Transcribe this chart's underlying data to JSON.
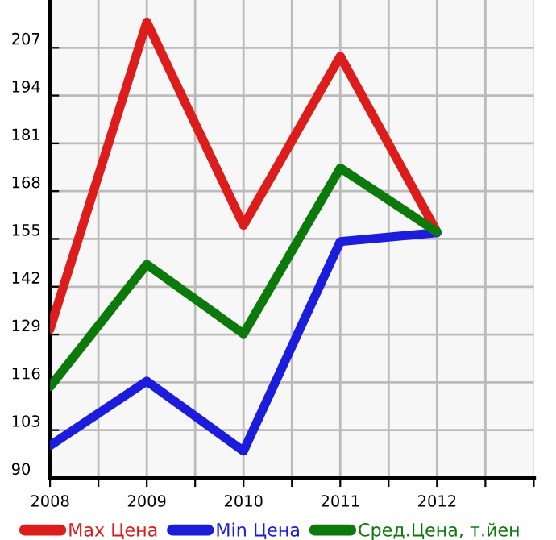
{
  "chart_data": {
    "type": "line",
    "x": [
      2008,
      2009,
      2010,
      2011,
      2012
    ],
    "series": [
      {
        "name": "Max Цена",
        "color": "#dd1c1c",
        "values": [
          130.5,
          214,
          158.7,
          204.7,
          156.9
        ]
      },
      {
        "name": "Min Цена",
        "color": "#1c1cdd",
        "values": [
          98.8,
          116.3,
          97.3,
          154.3,
          156.7
        ]
      },
      {
        "name": "Сред.Цена, т.йен",
        "color": "#0b7a0b",
        "values": [
          114.8,
          148.1,
          129.2,
          174.3,
          156.9
        ]
      }
    ],
    "xlim": [
      2008,
      2013
    ],
    "xticks": [
      2008,
      {
        "value": 2008.5,
        "label": null
      },
      2009,
      {
        "value": 2009.5,
        "label": null
      },
      2010,
      {
        "value": 2010.5,
        "label": null
      },
      2011,
      {
        "value": 2011.5,
        "label": null
      },
      2012,
      {
        "value": 2012.5,
        "label": null
      },
      {
        "value": 2013,
        "label": null
      }
    ],
    "ylim": [
      90,
      220
    ],
    "yticks": [
      90,
      103,
      116,
      129,
      142,
      155,
      168,
      181,
      194,
      207
    ],
    "grid": true,
    "legend": "bottom",
    "marker": "none",
    "line_style": "solid"
  }
}
